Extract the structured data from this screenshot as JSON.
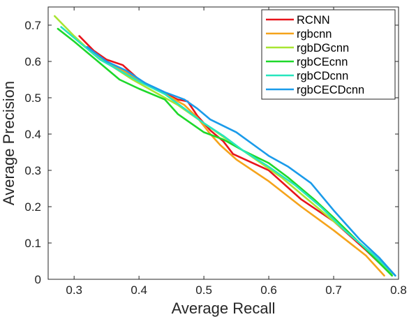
{
  "chart_data": {
    "type": "line",
    "xlabel": "Average Recall",
    "ylabel": "Average Precision",
    "xlim": [
      0.26,
      0.8
    ],
    "ylim": [
      0,
      0.75
    ],
    "xticks": [
      0.3,
      0.4,
      0.5,
      0.6,
      0.7,
      0.8
    ],
    "yticks": [
      0,
      0.1,
      0.2,
      0.3,
      0.4,
      0.5,
      0.6,
      0.7
    ],
    "xtick_labels": [
      "0.3",
      "0.4",
      "0.5",
      "0.6",
      "0.7",
      "0.8"
    ],
    "ytick_labels": [
      "0",
      "0.1",
      "0.2",
      "0.3",
      "0.4",
      "0.5",
      "0.6",
      "0.7"
    ],
    "grid": false,
    "box": true,
    "legend_position": "top-right",
    "series": [
      {
        "name": "RCNN",
        "color": "#e8141b",
        "x": [
          0.308,
          0.33,
          0.35,
          0.375,
          0.4,
          0.43,
          0.46,
          0.475,
          0.49,
          0.51,
          0.53,
          0.545,
          0.6,
          0.65,
          0.7,
          0.75,
          0.785
        ],
        "y": [
          0.67,
          0.63,
          0.605,
          0.59,
          0.55,
          0.52,
          0.495,
          0.49,
          0.45,
          0.41,
          0.38,
          0.345,
          0.3,
          0.22,
          0.16,
          0.08,
          0.02
        ]
      },
      {
        "name": "rgbcnn",
        "color": "#f5a31b",
        "x": [
          0.31,
          0.34,
          0.37,
          0.4,
          0.44,
          0.47,
          0.49,
          0.51,
          0.525,
          0.55,
          0.6,
          0.65,
          0.7,
          0.75,
          0.778
        ],
        "y": [
          0.65,
          0.61,
          0.58,
          0.55,
          0.51,
          0.48,
          0.445,
          0.4,
          0.37,
          0.33,
          0.27,
          0.2,
          0.135,
          0.065,
          0.01
        ]
      },
      {
        "name": "rgbDGcnn",
        "color": "#a8e532",
        "x": [
          0.27,
          0.3,
          0.33,
          0.36,
          0.39,
          0.42,
          0.46,
          0.5,
          0.54,
          0.58,
          0.62,
          0.66,
          0.7,
          0.75,
          0.79
        ],
        "y": [
          0.725,
          0.67,
          0.62,
          0.585,
          0.55,
          0.52,
          0.48,
          0.43,
          0.38,
          0.33,
          0.28,
          0.22,
          0.16,
          0.085,
          0.015
        ]
      },
      {
        "name": "rgbCEcnn",
        "color": "#1ed82a",
        "x": [
          0.275,
          0.3,
          0.33,
          0.37,
          0.4,
          0.44,
          0.46,
          0.48,
          0.5,
          0.53,
          0.56,
          0.6,
          0.63,
          0.67,
          0.7,
          0.74,
          0.79
        ],
        "y": [
          0.69,
          0.655,
          0.61,
          0.55,
          0.525,
          0.495,
          0.455,
          0.43,
          0.405,
          0.385,
          0.355,
          0.32,
          0.28,
          0.22,
          0.17,
          0.1,
          0.01
        ]
      },
      {
        "name": "rgbCDcnn",
        "color": "#27e6bd",
        "x": [
          0.28,
          0.31,
          0.34,
          0.37,
          0.4,
          0.44,
          0.47,
          0.5,
          0.53,
          0.56,
          0.6,
          0.64,
          0.68,
          0.72,
          0.76,
          0.795
        ],
        "y": [
          0.695,
          0.65,
          0.605,
          0.575,
          0.545,
          0.51,
          0.47,
          0.43,
          0.395,
          0.355,
          0.31,
          0.26,
          0.2,
          0.13,
          0.07,
          0.01
        ]
      },
      {
        "name": "rgbCECDcnn",
        "color": "#1a9bea",
        "x": [
          0.32,
          0.35,
          0.38,
          0.41,
          0.44,
          0.47,
          0.49,
          0.51,
          0.55,
          0.6,
          0.63,
          0.665,
          0.7,
          0.74,
          0.77,
          0.795
        ],
        "y": [
          0.64,
          0.6,
          0.575,
          0.54,
          0.515,
          0.495,
          0.47,
          0.44,
          0.405,
          0.34,
          0.31,
          0.265,
          0.19,
          0.11,
          0.06,
          0.01
        ]
      }
    ]
  }
}
